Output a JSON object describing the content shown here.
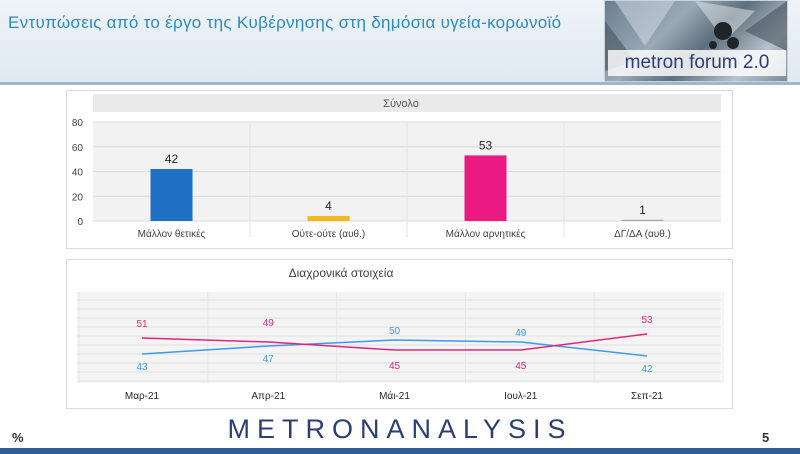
{
  "header": {
    "title": "Εντυπώσεις από το έργο της Κυβέρνησης στη δημόσια υγεία-κορωνοϊό",
    "logo_text": "metron forum 2.0"
  },
  "footer": {
    "percent_sign": "%",
    "brand": "METRONANALYSIS",
    "page_number": "5"
  },
  "colors": {
    "positive": "#1f6fc5",
    "neutral": "#f5b71b",
    "negative": "#ea1a82",
    "dk": "#a6a6a6",
    "line_positive": "#3d9be9",
    "line_negative": "#e0277a"
  },
  "chart_data": [
    {
      "type": "bar",
      "title": "Σύνολο",
      "categories": [
        "Μάλλον θετικές",
        "Ούτε-ούτε (αυθ.)",
        "Μάλλον αρνητικές",
        "ΔΓ/ΔΑ (αυθ.)"
      ],
      "values": [
        42,
        4,
        53,
        1
      ],
      "ylim": [
        0,
        80
      ],
      "yticks": [
        0,
        20,
        40,
        60,
        80
      ],
      "grid": true
    },
    {
      "type": "line",
      "title": "Διαχρονικά στοιχεία",
      "categories": [
        "Μαρ-21",
        "Απρ-21",
        "Μάι-21",
        "Ιουλ-21",
        "Σεπ-21"
      ],
      "series": [
        {
          "values": [
            43,
            47,
            50,
            49,
            42
          ]
        },
        {
          "values": [
            51,
            49,
            45,
            45,
            53
          ]
        }
      ],
      "grid": true
    }
  ]
}
